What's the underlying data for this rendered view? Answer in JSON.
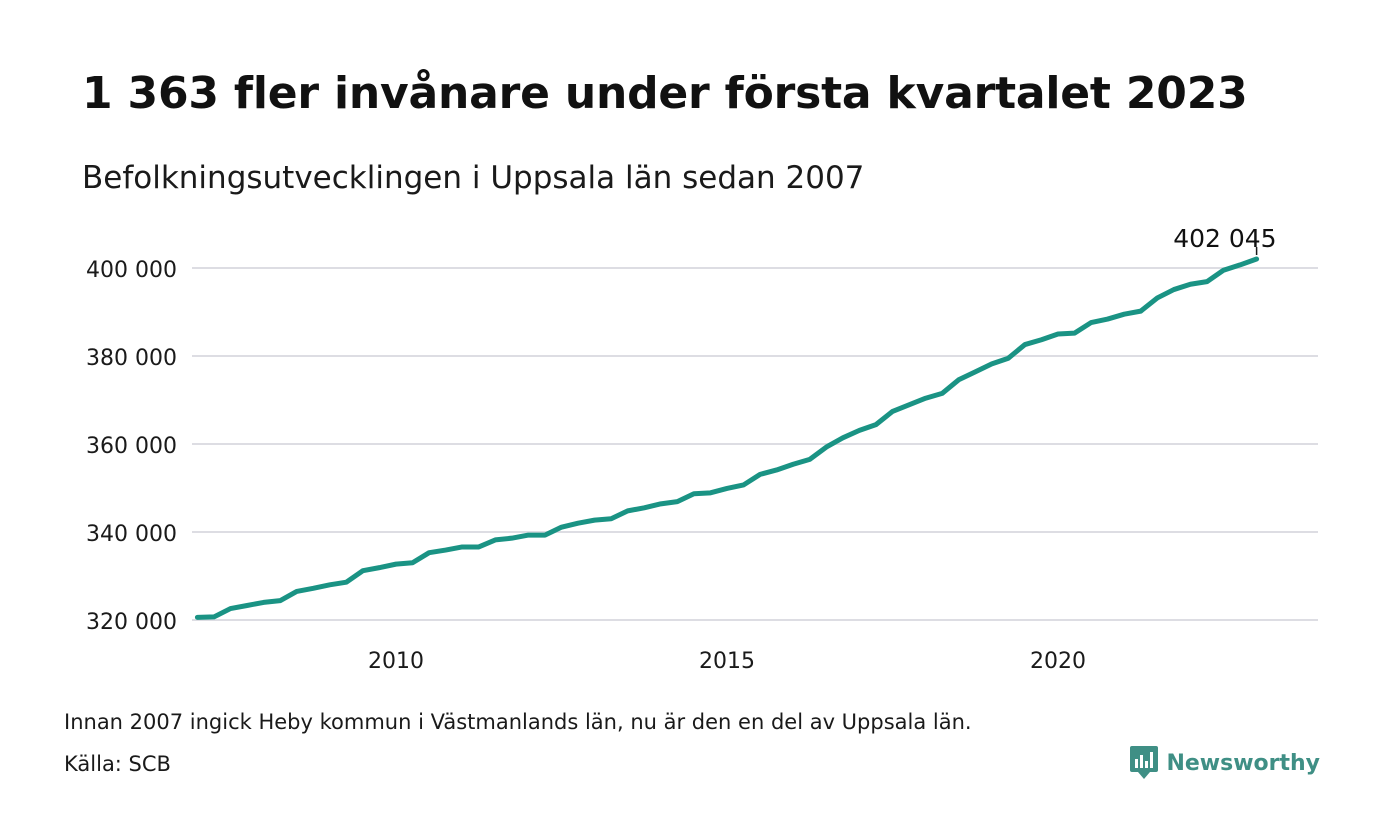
{
  "header": {
    "title": "1 363 fler invånare under första kvartalet 2023",
    "subtitle": "Befolkningsutvecklingen i Uppsala län sedan 2007"
  },
  "footer": {
    "note": "Innan 2007 ingick Heby kommun i Västmanlands län, nu är den en del av Uppsala län.",
    "source": "Källa: SCB",
    "brand": "Newsworthy"
  },
  "colors": {
    "line": "#1a9384",
    "grid": "#dddde3",
    "brand": "#3f8f85"
  },
  "chart_data": {
    "type": "line",
    "title": "1 363 fler invånare under första kvartalet 2023",
    "subtitle": "Befolkningsutvecklingen i Uppsala län sedan 2007",
    "x_unit": "year",
    "x": [
      2007.0,
      2007.25,
      2007.5,
      2007.75,
      2008.0,
      2008.25,
      2008.5,
      2008.75,
      2009.0,
      2009.25,
      2009.5,
      2009.75,
      2010.0,
      2010.25,
      2010.5,
      2010.75,
      2011.0,
      2011.25,
      2011.5,
      2011.75,
      2012.0,
      2012.25,
      2012.5,
      2012.75,
      2013.0,
      2013.25,
      2013.5,
      2013.75,
      2014.0,
      2014.25,
      2014.5,
      2014.75,
      2015.0,
      2015.25,
      2015.5,
      2015.75,
      2016.0,
      2016.25,
      2016.5,
      2016.75,
      2017.0,
      2017.25,
      2017.5,
      2017.75,
      2018.0,
      2018.25,
      2018.5,
      2018.75,
      2019.0,
      2019.25,
      2019.5,
      2019.75,
      2020.0,
      2020.25,
      2020.5,
      2020.75,
      2021.0,
      2021.25,
      2021.5,
      2021.75,
      2022.0,
      2022.25,
      2022.5,
      2022.75,
      2023.0
    ],
    "series": [
      {
        "values": [
          320600,
          320700,
          322600,
          323300,
          324000,
          324400,
          326500,
          327200,
          328000,
          328600,
          331200,
          331900,
          332700,
          333000,
          335300,
          335900,
          336600,
          336600,
          338200,
          338600,
          339300,
          339300,
          341100,
          342000,
          342700,
          343000,
          344800,
          345500,
          346400,
          346900,
          348700,
          348900,
          349900,
          350700,
          353100,
          354100,
          355400,
          356500,
          359300,
          361400,
          363100,
          364400,
          367400,
          368900,
          370400,
          371500,
          374600,
          376400,
          378200,
          379500,
          382600,
          383700,
          385000,
          385200,
          387600,
          388400,
          389500,
          390200,
          393200,
          395100,
          396300,
          396900,
          399500,
          400700,
          402045
        ]
      }
    ],
    "yticks": [
      320000,
      340000,
      360000,
      380000,
      400000
    ],
    "ytick_labels": [
      "320 000",
      "340 000",
      "360 000",
      "380 000",
      "400 000"
    ],
    "xticks": [
      2010,
      2015,
      2020
    ],
    "xtick_labels": [
      "2010",
      "2015",
      "2020"
    ],
    "ylim": [
      320000,
      402045
    ],
    "xlim": [
      2007.0,
      2024.0
    ],
    "grid": true,
    "annotations": [
      {
        "label": "402 045",
        "x": 2023.0,
        "y": 402045
      }
    ]
  }
}
